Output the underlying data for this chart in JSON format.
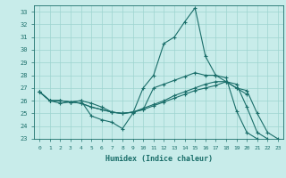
{
  "xlabel": "Humidex (Indice chaleur)",
  "bg_color": "#c8ecea",
  "grid_color": "#9dd4d0",
  "line_color": "#1a6e6a",
  "xlim": [
    -0.5,
    23.5
  ],
  "ylim": [
    23,
    33.5
  ],
  "yticks": [
    23,
    24,
    25,
    26,
    27,
    28,
    29,
    30,
    31,
    32,
    33
  ],
  "xticks": [
    0,
    1,
    2,
    3,
    4,
    5,
    6,
    7,
    8,
    9,
    10,
    11,
    12,
    13,
    14,
    15,
    16,
    17,
    18,
    19,
    20,
    21,
    22,
    23
  ],
  "series": [
    [
      26.7,
      26.0,
      26.0,
      25.9,
      26.0,
      24.8,
      24.5,
      24.3,
      23.8,
      25.0,
      27.0,
      28.0,
      30.5,
      31.0,
      32.2,
      33.3,
      29.5,
      28.0,
      27.8,
      25.2,
      23.5,
      23.0,
      null,
      null
    ],
    [
      26.7,
      26.0,
      25.8,
      25.9,
      26.0,
      25.8,
      25.5,
      25.1,
      25.0,
      25.1,
      25.3,
      27.0,
      27.3,
      27.6,
      27.9,
      28.2,
      28.0,
      28.0,
      27.5,
      27.0,
      26.5,
      null,
      null,
      null
    ],
    [
      26.7,
      26.0,
      26.0,
      25.9,
      25.8,
      25.5,
      25.3,
      25.1,
      25.0,
      25.1,
      25.4,
      25.7,
      26.0,
      26.4,
      26.7,
      27.0,
      27.3,
      27.5,
      27.5,
      27.3,
      25.5,
      23.5,
      23.0,
      null
    ],
    [
      26.7,
      26.0,
      26.0,
      25.9,
      25.8,
      25.5,
      25.3,
      25.1,
      25.0,
      25.1,
      25.3,
      25.6,
      25.9,
      26.2,
      26.5,
      26.8,
      27.0,
      27.2,
      27.5,
      27.0,
      26.8,
      25.0,
      23.5,
      23.0
    ]
  ]
}
